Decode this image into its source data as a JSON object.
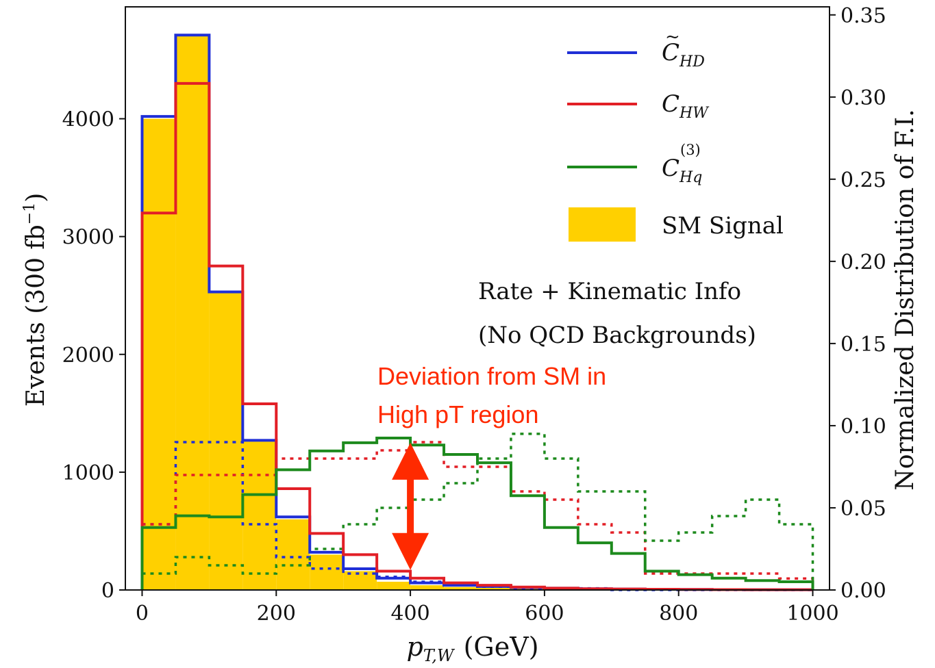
{
  "chart_data": {
    "type": "histogram",
    "xlabel": "p_{T,W} (GeV)",
    "ylabel": "Events (300 fb^{-1})",
    "y2label": "Normalized Distribution of F.I.",
    "xlim": [
      -25,
      1025
    ],
    "ylim": [
      0,
      4950
    ],
    "y2lim": [
      0,
      0.3549
    ],
    "x_ticks": [
      0,
      200,
      400,
      600,
      800,
      1000
    ],
    "y_ticks": [
      0,
      1000,
      2000,
      3000,
      4000
    ],
    "y2_ticks": [
      "0.00",
      "0.05",
      "0.10",
      "0.15",
      "0.20",
      "0.25",
      "0.30",
      "0.35"
    ],
    "bin_edges": [
      0,
      50,
      100,
      150,
      200,
      250,
      300,
      350,
      400,
      450,
      500,
      550,
      600,
      650,
      700,
      750,
      800,
      850,
      900,
      950,
      1000
    ],
    "sm_signal": {
      "name": "SM Signal",
      "color": "#FFD000",
      "values": [
        4000,
        4700,
        2520,
        1260,
        600,
        300,
        160,
        70,
        40,
        25,
        18,
        12,
        8,
        6,
        5,
        4,
        3,
        2,
        2,
        1
      ]
    },
    "series": [
      {
        "name": "C̃_HD",
        "sub": "HD",
        "color": "#1f2fd6",
        "events": [
          4020,
          4710,
          2530,
          1270,
          620,
          320,
          180,
          100,
          60,
          40,
          30,
          20,
          15,
          10,
          8,
          6,
          4,
          3,
          2,
          2
        ],
        "fi": [
          0.04,
          0.09,
          0.09,
          0.04,
          0.02,
          0.013,
          0.01,
          0.008,
          0.005,
          0.003,
          0.002,
          0.001,
          0.001,
          0.001,
          0,
          0,
          0,
          0,
          0,
          0
        ]
      },
      {
        "name": "C_HW",
        "sub": "HW",
        "color": "#e21f26",
        "events": [
          3200,
          4300,
          2750,
          1580,
          860,
          480,
          300,
          160,
          100,
          60,
          40,
          25,
          15,
          10,
          8,
          6,
          4,
          3,
          2,
          2
        ],
        "fi": [
          0.04,
          0.07,
          0.07,
          0.07,
          0.08,
          0.08,
          0.08,
          0.085,
          0.09,
          0.075,
          0.075,
          0.06,
          0.055,
          0.04,
          0.035,
          0.01,
          0.01,
          0.01,
          0.01,
          0.007
        ]
      },
      {
        "name": "C_Hq^(3)",
        "sub": "Hq",
        "sup": "(3)",
        "color": "#1d8a1d",
        "events": [
          530,
          630,
          620,
          810,
          1020,
          1180,
          1250,
          1290,
          1230,
          1150,
          1080,
          800,
          530,
          400,
          310,
          160,
          130,
          100,
          80,
          70
        ],
        "fi": [
          0.01,
          0.02,
          0.015,
          0.01,
          0.015,
          0.025,
          0.04,
          0.05,
          0.055,
          0.065,
          0.08,
          0.095,
          0.08,
          0.06,
          0.06,
          0.03,
          0.035,
          0.045,
          0.055,
          0.04
        ]
      }
    ],
    "legend_position": "top-right",
    "annotations": {
      "info_line1": "Rate + Kinematic Info",
      "info_line2": "(No QCD Backgrounds)",
      "deviation_line1": "Deviation from SM in",
      "deviation_line2": "High pT region",
      "arrow_from_x": 400,
      "arrow_from_y": 1250,
      "arrow_to_x": 400,
      "arrow_to_y": 170,
      "arrow_color": "#ff2a00"
    }
  }
}
